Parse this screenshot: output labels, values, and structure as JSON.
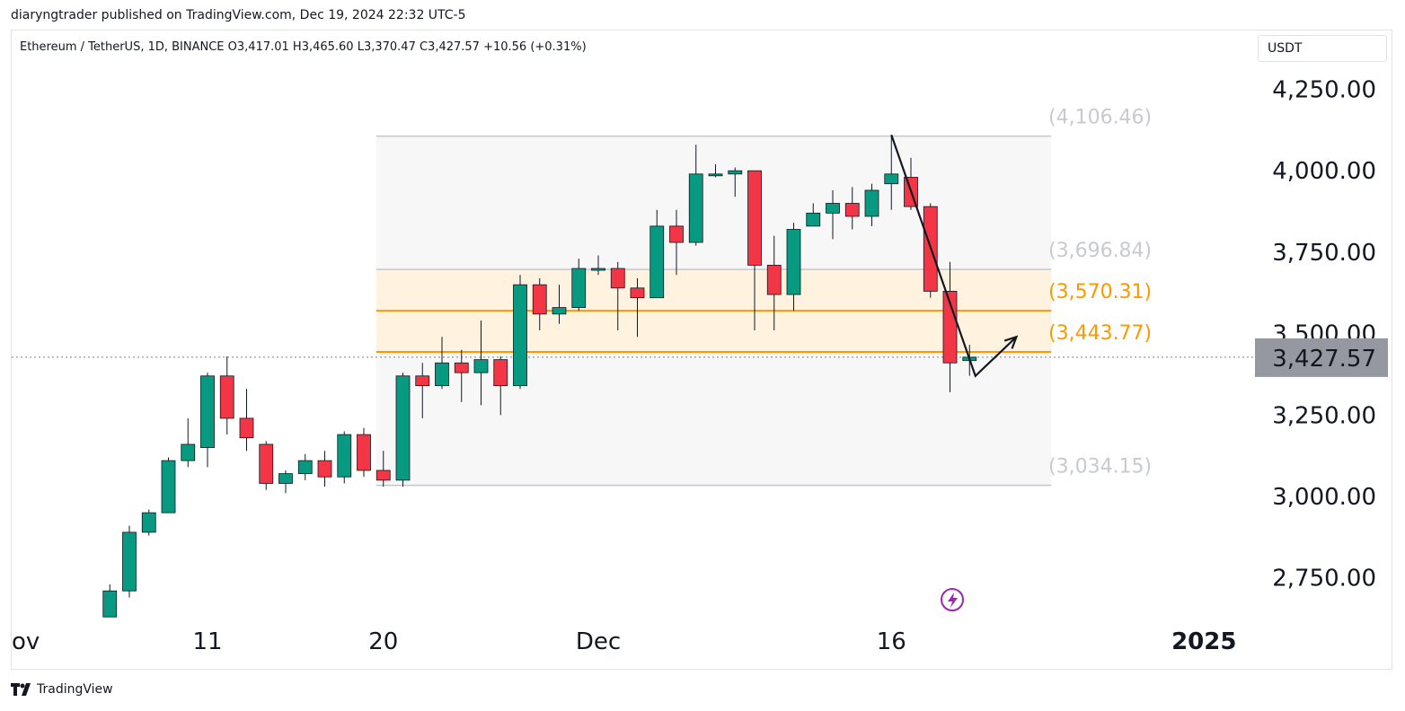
{
  "header": {
    "text": "diaryngtrader published on TradingView.com, Dec 19, 2024 22:32 UTC-5"
  },
  "legend": {
    "text": "Ethereum / TetherUS, 1D, BINANCE  O3,417.01  H3,465.60  L3,370.47  C3,427.57  +10.56 (+0.31%)"
  },
  "currency": {
    "label": "USDT"
  },
  "footer": {
    "brand": "TradingView"
  },
  "colors": {
    "up": "#089981",
    "down": "#f23645",
    "fib_highlight": "#ff9800",
    "fib_muted": "#c5c7cf",
    "price_badge": "#9598a1"
  },
  "icons": {
    "flash": "lightning-icon",
    "logo": "tradingview-logo-icon"
  },
  "chart_data": {
    "type": "candlestick",
    "symbol": "ETHUSDT",
    "interval": "1D",
    "ylim": [
      2630,
      4420
    ],
    "y_ticks": [
      {
        "value": 4250,
        "label": "4,250.00"
      },
      {
        "value": 4000,
        "label": "4,000.00"
      },
      {
        "value": 3750,
        "label": "3,750.00"
      },
      {
        "value": 3500,
        "label": "3,500.00"
      },
      {
        "value": 3250,
        "label": "3,250.00"
      },
      {
        "value": 3000,
        "label": "3,000.00"
      },
      {
        "value": 2750,
        "label": "2,750.00"
      }
    ],
    "x_ticks": [
      {
        "index": -4.1,
        "label": "ov"
      },
      {
        "index": 0,
        "label": "11"
      },
      {
        "index": 9,
        "label": "20"
      },
      {
        "index": 20,
        "label": "Dec"
      },
      {
        "index": 35,
        "label": "16"
      },
      {
        "index": 51,
        "label": "2025",
        "bold": true
      }
    ],
    "current_price": {
      "value": 3427.57,
      "label": "3,427.57"
    },
    "candles": [
      {
        "i": -5,
        "o": 2630,
        "h": 2730,
        "l": 2630,
        "c": 2710
      },
      {
        "i": -4,
        "o": 2710,
        "h": 2910,
        "l": 2690,
        "c": 2890
      },
      {
        "i": -3,
        "o": 2890,
        "h": 2960,
        "l": 2880,
        "c": 2950
      },
      {
        "i": -2,
        "o": 2950,
        "h": 3120,
        "l": 2950,
        "c": 3110
      },
      {
        "i": -1,
        "o": 3110,
        "h": 3240,
        "l": 3090,
        "c": 3160
      },
      {
        "i": 0,
        "o": 3150,
        "h": 3380,
        "l": 3090,
        "c": 3370
      },
      {
        "i": 1,
        "o": 3370,
        "h": 3430,
        "l": 3190,
        "c": 3240
      },
      {
        "i": 2,
        "o": 3240,
        "h": 3330,
        "l": 3140,
        "c": 3180
      },
      {
        "i": 3,
        "o": 3160,
        "h": 3170,
        "l": 3020,
        "c": 3040
      },
      {
        "i": 4,
        "o": 3040,
        "h": 3080,
        "l": 3010,
        "c": 3070
      },
      {
        "i": 5,
        "o": 3070,
        "h": 3130,
        "l": 3050,
        "c": 3110
      },
      {
        "i": 6,
        "o": 3110,
        "h": 3140,
        "l": 3030,
        "c": 3060
      },
      {
        "i": 7,
        "o": 3060,
        "h": 3200,
        "l": 3040,
        "c": 3190
      },
      {
        "i": 8,
        "o": 3190,
        "h": 3210,
        "l": 3060,
        "c": 3080
      },
      {
        "i": 9,
        "o": 3080,
        "h": 3140,
        "l": 3030,
        "c": 3050
      },
      {
        "i": 10,
        "o": 3050,
        "h": 3380,
        "l": 3030,
        "c": 3370
      },
      {
        "i": 11,
        "o": 3370,
        "h": 3410,
        "l": 3240,
        "c": 3340
      },
      {
        "i": 12,
        "o": 3340,
        "h": 3490,
        "l": 3330,
        "c": 3410
      },
      {
        "i": 13,
        "o": 3410,
        "h": 3450,
        "l": 3290,
        "c": 3380
      },
      {
        "i": 14,
        "o": 3380,
        "h": 3540,
        "l": 3280,
        "c": 3420
      },
      {
        "i": 15,
        "o": 3420,
        "h": 3430,
        "l": 3250,
        "c": 3340
      },
      {
        "i": 16,
        "o": 3340,
        "h": 3680,
        "l": 3330,
        "c": 3650
      },
      {
        "i": 17,
        "o": 3650,
        "h": 3670,
        "l": 3510,
        "c": 3560
      },
      {
        "i": 18,
        "o": 3560,
        "h": 3650,
        "l": 3530,
        "c": 3580
      },
      {
        "i": 19,
        "o": 3580,
        "h": 3730,
        "l": 3570,
        "c": 3700
      },
      {
        "i": 20,
        "o": 3700,
        "h": 3740,
        "l": 3680,
        "c": 3700
      },
      {
        "i": 21,
        "o": 3700,
        "h": 3720,
        "l": 3510,
        "c": 3640
      },
      {
        "i": 22,
        "o": 3640,
        "h": 3670,
        "l": 3490,
        "c": 3610
      },
      {
        "i": 23,
        "o": 3610,
        "h": 3880,
        "l": 3610,
        "c": 3830
      },
      {
        "i": 24,
        "o": 3830,
        "h": 3880,
        "l": 3680,
        "c": 3780
      },
      {
        "i": 25,
        "o": 3780,
        "h": 4080,
        "l": 3770,
        "c": 3990
      },
      {
        "i": 26,
        "o": 3990,
        "h": 4020,
        "l": 3980,
        "c": 3990
      },
      {
        "i": 27,
        "o": 3990,
        "h": 4010,
        "l": 3920,
        "c": 4000
      },
      {
        "i": 28,
        "o": 4000,
        "h": 4000,
        "l": 3510,
        "c": 3710
      },
      {
        "i": 29,
        "o": 3710,
        "h": 3800,
        "l": 3510,
        "c": 3620
      },
      {
        "i": 30,
        "o": 3620,
        "h": 3840,
        "l": 3570,
        "c": 3820
      },
      {
        "i": 31,
        "o": 3830,
        "h": 3900,
        "l": 3830,
        "c": 3870
      },
      {
        "i": 32,
        "o": 3870,
        "h": 3940,
        "l": 3790,
        "c": 3900
      },
      {
        "i": 33,
        "o": 3900,
        "h": 3950,
        "l": 3820,
        "c": 3860
      },
      {
        "i": 34,
        "o": 3860,
        "h": 3960,
        "l": 3830,
        "c": 3940
      },
      {
        "i": 35,
        "o": 3960,
        "h": 4110,
        "l": 3880,
        "c": 3990
      },
      {
        "i": 36,
        "o": 3980,
        "h": 4040,
        "l": 3880,
        "c": 3890
      },
      {
        "i": 37,
        "o": 3890,
        "h": 3900,
        "l": 3610,
        "c": 3630
      },
      {
        "i": 38,
        "o": 3630,
        "h": 3720,
        "l": 3320,
        "c": 3410
      },
      {
        "i": 39,
        "o": 3417.01,
        "h": 3465.6,
        "l": 3370.47,
        "c": 3427.57
      }
    ],
    "fib_levels": [
      {
        "value": 4106.46,
        "label": "(4,106.46)",
        "highlight": false
      },
      {
        "value": 3696.84,
        "label": "(3,696.84)",
        "highlight": false
      },
      {
        "value": 3570.31,
        "label": "(3,570.31)",
        "highlight": true
      },
      {
        "value": 3443.77,
        "label": "(3,443.77)",
        "highlight": true
      },
      {
        "value": 3034.15,
        "label": "(3,034.15)",
        "highlight": false
      }
    ],
    "fib_range": {
      "start_index": 9,
      "end_index": 43
    },
    "drawn_path": [
      {
        "i": 35,
        "v": 4110
      },
      {
        "i": 39.3,
        "v": 3370
      },
      {
        "i": 41.4,
        "v": 3490
      }
    ],
    "grid": false
  }
}
